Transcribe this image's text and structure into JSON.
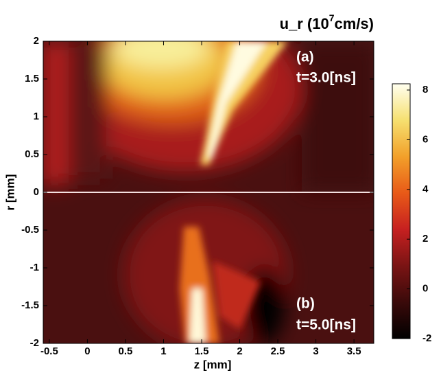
{
  "chart_data": {
    "type": "contour",
    "title": [
      "u_r (10",
      "7",
      "cm/s)"
    ],
    "xlabel": "z [mm]",
    "ylabel": "r [mm]",
    "xlim": [
      -0.58,
      3.76
    ],
    "xticks": [
      -0.5,
      0,
      0.5,
      1,
      1.5,
      2,
      2.5,
      3,
      3.5
    ],
    "ylim": [
      -2,
      2
    ],
    "yticks": [
      -2,
      -1.5,
      -1,
      -0.5,
      0,
      0.5,
      1,
      1.5,
      2
    ],
    "annotations": [
      "(a)",
      "t=3.0[ns]",
      "(b)",
      "t=5.0[ns]"
    ],
    "colorbar": {
      "lim": [
        -2,
        8.25
      ],
      "ticks": [
        -2,
        0,
        2,
        4,
        6,
        8
      ],
      "colors": [
        "#000000",
        "#3a0a0a",
        "#7a1414",
        "#c62020",
        "#e85a18",
        "#f2a02a",
        "#f6e070",
        "#fffff0"
      ]
    }
  }
}
